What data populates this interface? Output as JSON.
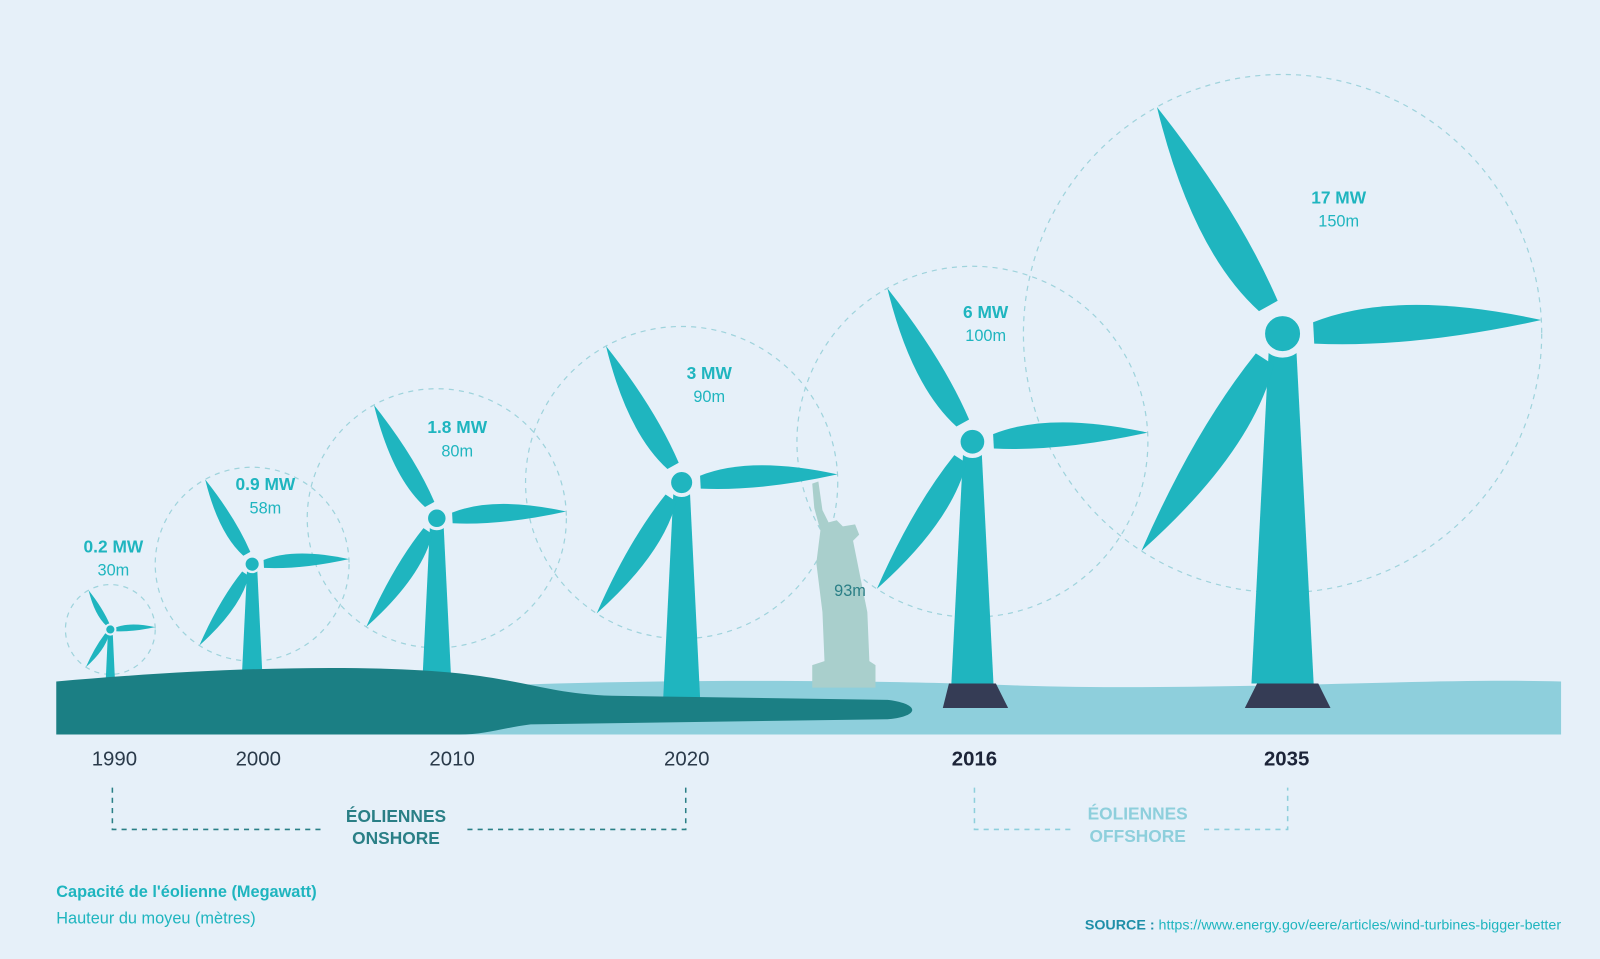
{
  "turbines": [
    {
      "capacity": "0.2 MW",
      "height": "30m",
      "year": "1990"
    },
    {
      "capacity": "0.9 MW",
      "height": "58m",
      "year": "2000"
    },
    {
      "capacity": "1.8 MW",
      "height": "80m",
      "year": "2010"
    },
    {
      "capacity": "3 MW",
      "height": "90m",
      "year": "2020"
    },
    {
      "capacity": "6 MW",
      "height": "100m",
      "year": "2016"
    },
    {
      "capacity": "17 MW",
      "height": "150m",
      "year": "2035"
    }
  ],
  "statue": {
    "height": "93m"
  },
  "groups": [
    {
      "lines": [
        "ÉOLIENNES",
        "ONSHORE"
      ]
    },
    {
      "lines": [
        "ÉOLIENNES",
        "OFFSHORE"
      ]
    }
  ],
  "legend": {
    "capacity": "Capacité de l'éolienne (Megawatt)",
    "height": "Hauteur du moyeu (mètres)"
  },
  "source": {
    "label": "SOURCE :",
    "url": "https://www.energy.gov/eere/articles/wind-turbines-bigger-better"
  }
}
